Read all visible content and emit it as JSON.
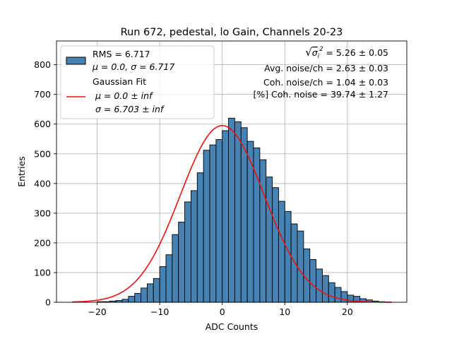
{
  "chart_data": {
    "type": "bar",
    "title": "Run 672, pedestal, lo Gain, Channels 20-23",
    "xlabel": "ADC Counts",
    "ylabel": "Entries",
    "xlim": [
      -26.5,
      29.5
    ],
    "ylim": [
      0,
      880
    ],
    "xticks": [
      -20,
      -10,
      0,
      10,
      20
    ],
    "yticks": [
      0,
      100,
      200,
      300,
      400,
      500,
      600,
      700,
      800
    ],
    "xtick_labels": [
      "−20",
      "−10",
      "0",
      "10",
      "20"
    ],
    "ytick_labels": [
      "0",
      "100",
      "200",
      "300",
      "400",
      "500",
      "600",
      "700",
      "800"
    ],
    "grid": true,
    "bin_width": 1,
    "bin_start": -24,
    "bin_counts": [
      0,
      0,
      0,
      0,
      2,
      2,
      4,
      6,
      10,
      20,
      30,
      48,
      62,
      80,
      120,
      160,
      228,
      270,
      338,
      376,
      436,
      512,
      530,
      548,
      578,
      620,
      608,
      588,
      542,
      520,
      480,
      422,
      386,
      340,
      306,
      264,
      240,
      180,
      144,
      112,
      90,
      66,
      50,
      36,
      24,
      20,
      12,
      8,
      4,
      2,
      1,
      0
    ],
    "series": [
      {
        "name": "RMS = 6.717",
        "name_line2": "μ = 0.0, σ = 6.717",
        "color": "#4682b4",
        "edge_color": "#000000"
      },
      {
        "name": "Gaussian Fit",
        "name_line2": "μ = 0.0 ± inf",
        "name_line3": "σ = 6.703 ± inf",
        "color": "#ee1111",
        "mu": 0.0,
        "sigma": 6.703,
        "amplitude": 595,
        "x_range": [
          -24,
          27
        ]
      }
    ],
    "legend_position": "top-left",
    "annotations": [
      {
        "prefix": "√",
        "symbol": "σ",
        "subscript": "i",
        "superscript": "2",
        "value": " = 5.26 ± 0.05"
      },
      {
        "value": "Avg. noise/ch = 2.63 ± 0.03"
      },
      {
        "value": "Coh. noise/ch = 1.04 ± 0.03"
      },
      {
        "value": "[%] Coh. noise = 39.74 ± 1.27"
      }
    ]
  }
}
